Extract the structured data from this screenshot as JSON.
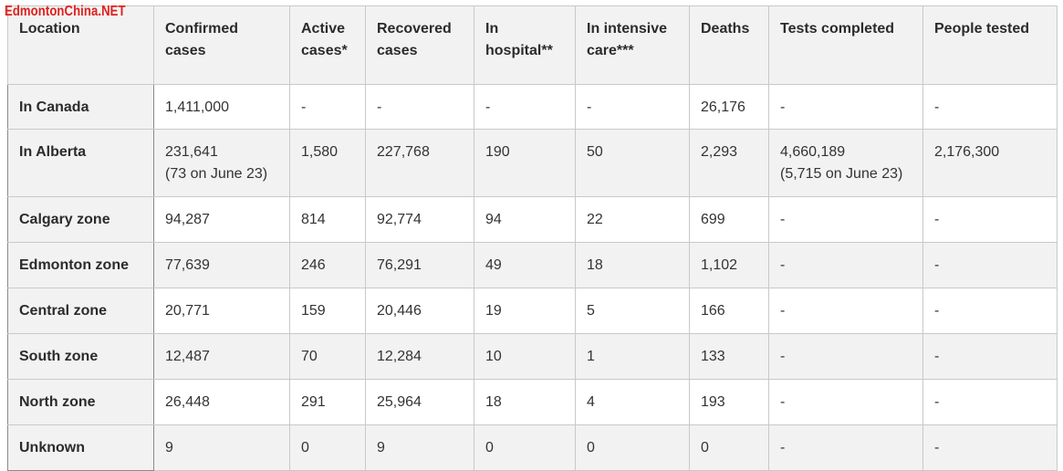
{
  "watermark": "EdmontonChina.NET",
  "table": {
    "headers": [
      "Location",
      "Confirmed cases",
      "Active cases*",
      "Recovered cases",
      "In hospital**",
      "In intensive care***",
      "Deaths",
      "Tests completed",
      "People tested"
    ],
    "rows": [
      {
        "location": "In Canada",
        "confirmed": "1,411,000",
        "confirmed_note": "",
        "active": "-",
        "recovered": "-",
        "hospital": "-",
        "icu": "-",
        "deaths": "26,176",
        "tests": "-",
        "tests_note": "",
        "people_tested": "-"
      },
      {
        "location": "In Alberta",
        "confirmed": "231,641",
        "confirmed_note": "(73 on June 23)",
        "active": "1,580",
        "recovered": "227,768",
        "hospital": "190",
        "icu": "50",
        "deaths": "2,293",
        "tests": "4,660,189",
        "tests_note": "(5,715 on June 23)",
        "people_tested": "2,176,300"
      },
      {
        "location": "Calgary zone",
        "confirmed": "94,287",
        "confirmed_note": "",
        "active": "814",
        "recovered": "92,774",
        "hospital": "94",
        "icu": "22",
        "deaths": "699",
        "tests": "-",
        "tests_note": "",
        "people_tested": "-"
      },
      {
        "location": "Edmonton zone",
        "confirmed": "77,639",
        "confirmed_note": "",
        "active": "246",
        "recovered": "76,291",
        "hospital": "49",
        "icu": "18",
        "deaths": "1,102",
        "tests": "-",
        "tests_note": "",
        "people_tested": "-"
      },
      {
        "location": "Central zone",
        "confirmed": "20,771",
        "confirmed_note": "",
        "active": "159",
        "recovered": "20,446",
        "hospital": "19",
        "icu": "5",
        "deaths": "166",
        "tests": "-",
        "tests_note": "",
        "people_tested": "-"
      },
      {
        "location": "South zone",
        "confirmed": "12,487",
        "confirmed_note": "",
        "active": "70",
        "recovered": "12,284",
        "hospital": "10",
        "icu": "1",
        "deaths": "133",
        "tests": "-",
        "tests_note": "",
        "people_tested": "-"
      },
      {
        "location": "North zone",
        "confirmed": "26,448",
        "confirmed_note": "",
        "active": "291",
        "recovered": "25,964",
        "hospital": "18",
        "icu": "4",
        "deaths": "193",
        "tests": "-",
        "tests_note": "",
        "people_tested": "-"
      },
      {
        "location": "Unknown",
        "confirmed": "9",
        "confirmed_note": "",
        "active": "0",
        "recovered": "9",
        "hospital": "0",
        "icu": "0",
        "deaths": "0",
        "tests": "-",
        "tests_note": "",
        "people_tested": "-"
      }
    ]
  },
  "colors": {
    "watermark": "#e0201c",
    "header_bg": "#f2f2f2",
    "stripe_bg": "#f2f2f2",
    "border": "#c9c9c9"
  }
}
